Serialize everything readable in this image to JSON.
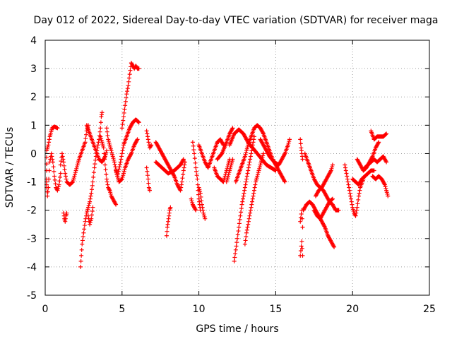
{
  "chart_data": {
    "type": "scatter",
    "title": "Day 012 of 2022, Sidereal Day-to-day VTEC variation (SDTVAR) for receiver maga",
    "xlabel": "GPS time / hours",
    "ylabel": "SDTVAR / TECUs",
    "xlim": [
      0,
      25
    ],
    "ylim": [
      -5,
      4
    ],
    "xticks": [
      "0",
      "5",
      "10",
      "15",
      "20",
      "25"
    ],
    "yticks": [
      "-5",
      "-4",
      "-3",
      "-2",
      "-1",
      "0",
      "1",
      "2",
      "3",
      "4"
    ],
    "grid": true,
    "marker": "+",
    "color": "#ff0000",
    "segments": [
      [
        [
          0.0,
          -0.6
        ],
        [
          0.1,
          0.1
        ],
        [
          0.2,
          0.3
        ],
        [
          0.3,
          0.6
        ],
        [
          0.45,
          0.9
        ],
        [
          0.6,
          0.95
        ],
        [
          0.8,
          0.9
        ]
      ],
      [
        [
          0.0,
          -0.9
        ],
        [
          0.1,
          -1.2
        ],
        [
          0.15,
          -1.5
        ],
        [
          0.2,
          -1.2
        ],
        [
          0.3,
          -0.3
        ],
        [
          0.4,
          0.0
        ],
        [
          0.5,
          -0.3
        ],
        [
          0.6,
          -0.8
        ],
        [
          0.7,
          -1.2
        ],
        [
          0.8,
          -1.3
        ],
        [
          0.9,
          -1.1
        ],
        [
          1.0,
          -0.7
        ]
      ],
      [
        [
          1.0,
          -0.4
        ],
        [
          1.1,
          0.0
        ],
        [
          1.2,
          -0.3
        ],
        [
          1.3,
          -0.7
        ],
        [
          1.4,
          -1.0
        ],
        [
          1.6,
          -1.1
        ],
        [
          1.8,
          -1.0
        ],
        [
          2.0,
          -0.6
        ],
        [
          2.2,
          -0.2
        ],
        [
          2.4,
          0.1
        ],
        [
          2.6,
          0.4
        ],
        [
          2.7,
          0.8
        ],
        [
          2.8,
          1.0
        ]
      ],
      [
        [
          1.2,
          -2.1
        ],
        [
          1.25,
          -2.3
        ],
        [
          1.3,
          -2.4
        ],
        [
          1.35,
          -2.2
        ],
        [
          1.4,
          -2.1
        ]
      ],
      [
        [
          2.3,
          -4.0
        ],
        [
          2.35,
          -3.6
        ],
        [
          2.4,
          -3.2
        ],
        [
          2.5,
          -2.8
        ],
        [
          2.6,
          -2.4
        ],
        [
          2.7,
          -2.1
        ],
        [
          2.8,
          -1.9
        ],
        [
          2.9,
          -1.7
        ],
        [
          3.0,
          -1.4
        ],
        [
          3.1,
          -1.0
        ],
        [
          3.2,
          -0.5
        ],
        [
          3.3,
          -0.1
        ],
        [
          3.4,
          0.2
        ],
        [
          3.5,
          0.5
        ],
        [
          3.6,
          0.9
        ],
        [
          3.65,
          1.3
        ],
        [
          3.7,
          1.45
        ]
      ],
      [
        [
          2.8,
          -2.2
        ],
        [
          2.9,
          -2.5
        ],
        [
          3.0,
          -2.3
        ],
        [
          3.1,
          -1.9
        ]
      ],
      [
        [
          2.7,
          1.0
        ],
        [
          2.9,
          0.7
        ],
        [
          3.1,
          0.4
        ],
        [
          3.3,
          0.1
        ],
        [
          3.5,
          -0.2
        ],
        [
          3.7,
          -0.3
        ],
        [
          3.9,
          -0.1
        ],
        [
          4.0,
          0.1
        ]
      ],
      [
        [
          3.6,
          0.6
        ],
        [
          3.8,
          0.2
        ],
        [
          3.9,
          -0.4
        ],
        [
          4.0,
          -0.9
        ],
        [
          4.1,
          -1.2
        ],
        [
          4.2,
          -1.3
        ],
        [
          4.3,
          -1.5
        ],
        [
          4.4,
          -1.6
        ],
        [
          4.5,
          -1.7
        ],
        [
          4.6,
          -1.8
        ]
      ],
      [
        [
          4.0,
          0.9
        ],
        [
          4.1,
          0.5
        ],
        [
          4.3,
          0.1
        ],
        [
          4.5,
          -0.3
        ],
        [
          4.7,
          -0.8
        ],
        [
          4.9,
          -0.3
        ],
        [
          5.0,
          0.0
        ],
        [
          5.1,
          0.3
        ],
        [
          5.3,
          0.6
        ],
        [
          5.5,
          0.9
        ],
        [
          5.7,
          1.1
        ],
        [
          5.9,
          1.2
        ],
        [
          6.1,
          1.1
        ]
      ],
      [
        [
          4.6,
          -0.6
        ],
        [
          4.8,
          -1.0
        ],
        [
          5.0,
          -0.9
        ],
        [
          5.2,
          -0.5
        ],
        [
          5.4,
          -0.2
        ],
        [
          5.6,
          0.0
        ],
        [
          5.8,
          0.3
        ],
        [
          6.0,
          0.5
        ]
      ],
      [
        [
          5.0,
          0.9
        ],
        [
          5.1,
          1.3
        ],
        [
          5.2,
          1.7
        ],
        [
          5.3,
          2.1
        ],
        [
          5.4,
          2.4
        ],
        [
          5.5,
          2.8
        ],
        [
          5.6,
          3.2
        ],
        [
          5.7,
          3.1
        ],
        [
          5.8,
          3.0
        ],
        [
          5.9,
          3.1
        ],
        [
          6.0,
          3.0
        ],
        [
          6.1,
          3.0
        ]
      ],
      [
        [
          6.6,
          0.8
        ],
        [
          6.7,
          0.5
        ],
        [
          6.8,
          0.2
        ],
        [
          6.9,
          0.3
        ]
      ],
      [
        [
          6.6,
          -0.5
        ],
        [
          6.7,
          -0.9
        ],
        [
          6.75,
          -1.2
        ],
        [
          6.8,
          -1.3
        ]
      ],
      [
        [
          7.2,
          0.4
        ],
        [
          7.4,
          0.2
        ],
        [
          7.6,
          0.0
        ],
        [
          7.8,
          -0.2
        ],
        [
          8.0,
          -0.4
        ],
        [
          8.2,
          -0.6
        ],
        [
          8.4,
          -0.8
        ],
        [
          8.6,
          -1.1
        ],
        [
          8.8,
          -1.3
        ],
        [
          8.9,
          -1.0
        ],
        [
          9.0,
          -0.6
        ],
        [
          9.1,
          -0.3
        ]
      ],
      [
        [
          7.2,
          -0.3
        ],
        [
          7.6,
          -0.5
        ],
        [
          8.0,
          -0.7
        ],
        [
          8.4,
          -0.6
        ],
        [
          8.8,
          -0.4
        ],
        [
          9.0,
          -0.2
        ]
      ],
      [
        [
          7.9,
          -2.9
        ],
        [
          7.95,
          -2.6
        ],
        [
          8.0,
          -2.4
        ],
        [
          8.05,
          -2.2
        ],
        [
          8.1,
          -2.0
        ],
        [
          8.15,
          -1.9
        ]
      ],
      [
        [
          9.6,
          0.4
        ],
        [
          9.7,
          0.0
        ],
        [
          9.8,
          -0.5
        ],
        [
          9.9,
          -0.9
        ],
        [
          9.95,
          -1.3
        ],
        [
          10.0,
          -1.6
        ],
        [
          10.05,
          -1.8
        ],
        [
          10.1,
          -2.0
        ]
      ],
      [
        [
          9.5,
          -1.6
        ],
        [
          9.6,
          -1.8
        ],
        [
          9.7,
          -1.9
        ],
        [
          9.8,
          -2.0
        ]
      ],
      [
        [
          10.0,
          -1.2
        ],
        [
          10.1,
          -1.4
        ],
        [
          10.2,
          -1.8
        ],
        [
          10.3,
          -2.1
        ],
        [
          10.4,
          -2.3
        ]
      ],
      [
        [
          10.0,
          0.3
        ],
        [
          10.2,
          0.0
        ],
        [
          10.4,
          -0.3
        ],
        [
          10.6,
          -0.5
        ],
        [
          10.8,
          -0.2
        ],
        [
          11.0,
          0.1
        ],
        [
          11.2,
          0.4
        ],
        [
          11.4,
          0.5
        ],
        [
          11.6,
          0.3
        ]
      ],
      [
        [
          11.0,
          -0.5
        ],
        [
          11.2,
          -0.8
        ],
        [
          11.4,
          -0.9
        ],
        [
          11.6,
          -1.0
        ],
        [
          11.8,
          -0.6
        ],
        [
          12.0,
          -0.2
        ]
      ],
      [
        [
          12.0,
          0.3
        ],
        [
          12.3,
          0.7
        ],
        [
          12.6,
          0.85
        ],
        [
          12.9,
          0.7
        ],
        [
          13.2,
          0.4
        ],
        [
          13.5,
          0.2
        ],
        [
          13.8,
          0.0
        ],
        [
          14.1,
          -0.2
        ],
        [
          14.4,
          -0.4
        ],
        [
          14.7,
          -0.5
        ],
        [
          15.0,
          -0.6
        ]
      ],
      [
        [
          12.4,
          -1.0
        ],
        [
          12.6,
          -0.7
        ],
        [
          12.8,
          -0.4
        ],
        [
          13.0,
          -0.1
        ],
        [
          13.2,
          0.3
        ],
        [
          13.4,
          0.6
        ],
        [
          13.6,
          0.9
        ],
        [
          13.8,
          1.0
        ],
        [
          14.0,
          0.9
        ],
        [
          14.2,
          0.7
        ],
        [
          14.4,
          0.4
        ],
        [
          14.6,
          0.1
        ],
        [
          14.8,
          -0.2
        ],
        [
          15.0,
          -0.4
        ],
        [
          15.2,
          -0.6
        ],
        [
          15.4,
          -0.8
        ],
        [
          15.6,
          -1.0
        ]
      ],
      [
        [
          12.3,
          -3.8
        ],
        [
          12.4,
          -3.4
        ],
        [
          12.5,
          -3.0
        ],
        [
          12.6,
          -2.6
        ],
        [
          12.7,
          -2.2
        ],
        [
          12.8,
          -1.8
        ],
        [
          12.9,
          -1.5
        ],
        [
          13.0,
          -1.2
        ],
        [
          13.1,
          -0.9
        ],
        [
          13.2,
          -0.6
        ],
        [
          13.3,
          -0.3
        ],
        [
          13.4,
          0.0
        ],
        [
          13.5,
          0.3
        ],
        [
          13.6,
          0.6
        ]
      ],
      [
        [
          13.0,
          -3.2
        ],
        [
          13.1,
          -2.8
        ],
        [
          13.2,
          -2.5
        ],
        [
          13.3,
          -2.2
        ],
        [
          13.4,
          -1.9
        ],
        [
          13.5,
          -1.6
        ],
        [
          13.6,
          -1.3
        ],
        [
          13.7,
          -1.0
        ],
        [
          13.8,
          -0.8
        ],
        [
          13.9,
          -0.6
        ],
        [
          14.0,
          -0.4
        ],
        [
          14.1,
          -0.2
        ],
        [
          14.2,
          0.0
        ]
      ],
      [
        [
          14.0,
          0.5
        ],
        [
          14.3,
          0.2
        ],
        [
          14.6,
          -0.1
        ],
        [
          14.9,
          -0.3
        ],
        [
          15.2,
          -0.4
        ],
        [
          15.4,
          -0.2
        ],
        [
          15.6,
          0.0
        ],
        [
          15.8,
          0.3
        ],
        [
          15.9,
          0.5
        ]
      ],
      [
        [
          11.2,
          -0.2
        ],
        [
          11.5,
          0.0
        ],
        [
          11.8,
          0.4
        ],
        [
          12.0,
          0.7
        ],
        [
          12.2,
          0.9
        ]
      ],
      [
        [
          11.8,
          -1.0
        ],
        [
          11.9,
          -0.8
        ],
        [
          12.0,
          -0.6
        ],
        [
          12.1,
          -0.4
        ],
        [
          12.2,
          -0.2
        ]
      ],
      [
        [
          16.6,
          0.5
        ],
        [
          16.65,
          0.2
        ],
        [
          16.7,
          0.0
        ],
        [
          16.75,
          -0.2
        ]
      ],
      [
        [
          16.6,
          -2.4
        ],
        [
          16.7,
          -2.0
        ],
        [
          16.75,
          -2.6
        ]
      ],
      [
        [
          16.6,
          -3.6
        ],
        [
          16.7,
          -3.1
        ],
        [
          16.75,
          -3.6
        ]
      ],
      [
        [
          16.9,
          0.0
        ],
        [
          17.1,
          -0.3
        ],
        [
          17.3,
          -0.6
        ],
        [
          17.5,
          -0.9
        ],
        [
          17.7,
          -1.1
        ],
        [
          17.9,
          -1.2
        ],
        [
          18.1,
          -1.3
        ],
        [
          18.3,
          -1.5
        ],
        [
          18.5,
          -1.7
        ],
        [
          18.7,
          -1.8
        ],
        [
          18.9,
          -2.0
        ],
        [
          19.1,
          -2.0
        ]
      ],
      [
        [
          16.8,
          -2.0
        ],
        [
          17.0,
          -1.8
        ],
        [
          17.2,
          -1.7
        ],
        [
          17.4,
          -1.8
        ],
        [
          17.6,
          -2.0
        ],
        [
          17.8,
          -2.2
        ],
        [
          18.0,
          -2.4
        ],
        [
          18.2,
          -2.6
        ],
        [
          18.4,
          -2.9
        ],
        [
          18.6,
          -3.1
        ],
        [
          18.8,
          -3.3
        ]
      ],
      [
        [
          17.6,
          -1.5
        ],
        [
          17.8,
          -1.3
        ],
        [
          18.0,
          -1.2
        ],
        [
          18.2,
          -1.0
        ],
        [
          18.4,
          -0.8
        ],
        [
          18.6,
          -0.6
        ],
        [
          18.7,
          -0.4
        ]
      ],
      [
        [
          17.5,
          -2.0
        ],
        [
          17.7,
          -2.2
        ],
        [
          17.9,
          -2.3
        ],
        [
          18.1,
          -2.1
        ],
        [
          18.3,
          -1.9
        ],
        [
          18.5,
          -1.7
        ],
        [
          18.7,
          -1.6
        ]
      ],
      [
        [
          19.5,
          -0.4
        ],
        [
          19.6,
          -0.7
        ],
        [
          19.7,
          -1.0
        ],
        [
          19.8,
          -1.3
        ],
        [
          19.9,
          -1.6
        ],
        [
          20.0,
          -1.9
        ],
        [
          20.1,
          -2.1
        ],
        [
          20.2,
          -2.2
        ],
        [
          20.3,
          -1.9
        ],
        [
          20.4,
          -1.5
        ],
        [
          20.5,
          -1.2
        ],
        [
          20.7,
          -0.9
        ]
      ],
      [
        [
          20.0,
          -0.9
        ],
        [
          20.2,
          -1.0
        ],
        [
          20.4,
          -1.1
        ],
        [
          20.6,
          -0.9
        ],
        [
          20.8,
          -0.8
        ],
        [
          21.0,
          -0.7
        ],
        [
          21.2,
          -0.6
        ],
        [
          21.4,
          -0.6
        ]
      ],
      [
        [
          20.3,
          -0.2
        ],
        [
          20.5,
          -0.4
        ],
        [
          20.7,
          -0.6
        ],
        [
          20.9,
          -0.5
        ],
        [
          21.1,
          -0.3
        ],
        [
          21.3,
          -0.1
        ],
        [
          21.5,
          0.2
        ],
        [
          21.7,
          0.4
        ]
      ],
      [
        [
          20.8,
          -0.5
        ],
        [
          21.0,
          -0.4
        ],
        [
          21.2,
          -0.3
        ],
        [
          21.4,
          -0.2
        ],
        [
          21.6,
          -0.3
        ],
        [
          21.8,
          -0.2
        ],
        [
          22.0,
          -0.1
        ],
        [
          22.2,
          -0.3
        ]
      ],
      [
        [
          21.2,
          0.8
        ],
        [
          21.4,
          0.5
        ],
        [
          21.6,
          0.6
        ],
        [
          21.8,
          0.6
        ],
        [
          22.0,
          0.6
        ],
        [
          22.2,
          0.7
        ]
      ],
      [
        [
          21.3,
          -0.8
        ],
        [
          21.5,
          -0.9
        ],
        [
          21.7,
          -0.8
        ],
        [
          21.9,
          -0.9
        ],
        [
          22.1,
          -1.1
        ],
        [
          22.2,
          -1.3
        ],
        [
          22.3,
          -1.5
        ]
      ]
    ]
  }
}
